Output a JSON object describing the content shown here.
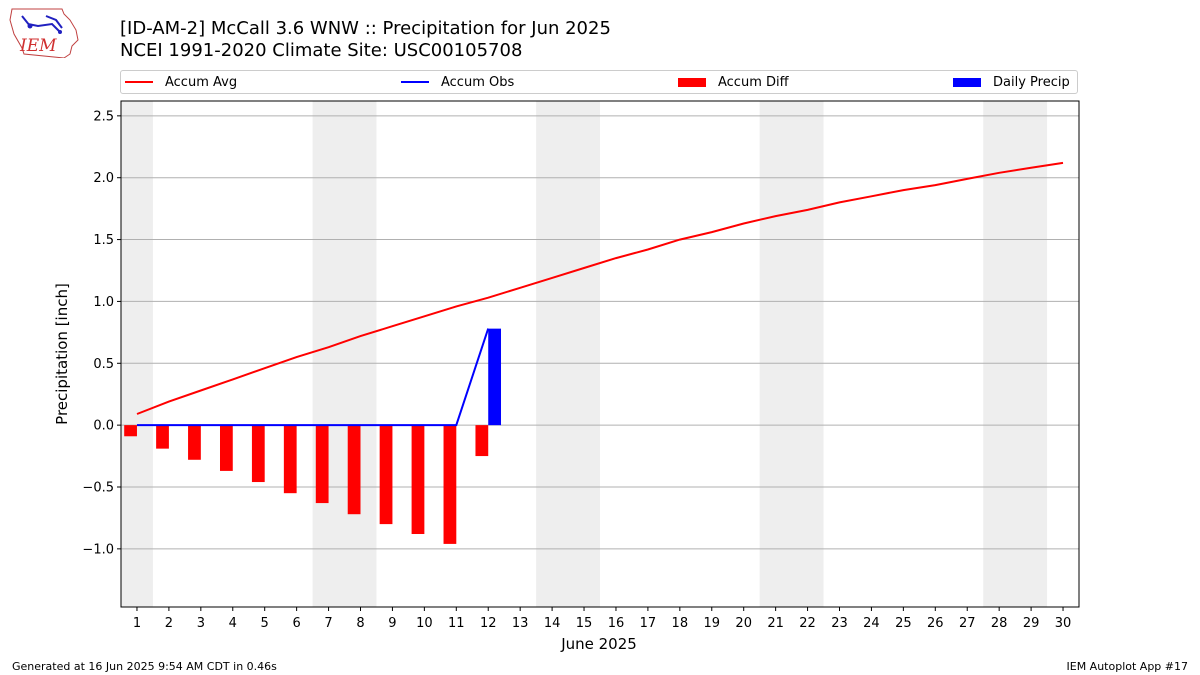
{
  "logo": {
    "text": "IEM"
  },
  "title_line1": "[ID-AM-2] McCall 3.6 WNW :: Precipitation for Jun 2025",
  "title_line2": "NCEI 1991-2020 Climate Site: USC00105708",
  "legend": [
    {
      "label": "Accum Avg",
      "kind": "line",
      "color": "#ff0000"
    },
    {
      "label": "Accum Obs",
      "kind": "line",
      "color": "#0000ff"
    },
    {
      "label": "Accum Diff",
      "kind": "bar",
      "color": "#ff0000"
    },
    {
      "label": "Daily Precip",
      "kind": "bar",
      "color": "#0000ff"
    }
  ],
  "footer": {
    "left": "Generated at 16 Jun 2025 9:54 AM CDT in 0.46s",
    "right": "IEM Autoplot App #17"
  },
  "chart_data": {
    "type": "bar",
    "title": "[ID-AM-2] McCall 3.6 WNW :: Precipitation for Jun 2025",
    "xlabel": "June 2025",
    "ylabel": "Precipitation [inch]",
    "x": [
      1,
      2,
      3,
      4,
      5,
      6,
      7,
      8,
      9,
      10,
      11,
      12,
      13,
      14,
      15,
      16,
      17,
      18,
      19,
      20,
      21,
      22,
      23,
      24,
      25,
      26,
      27,
      28,
      29,
      30
    ],
    "xlim": [
      0.5,
      30.5
    ],
    "ylim": [
      -1.47,
      2.62
    ],
    "yticks": [
      -1.0,
      -0.5,
      0.0,
      0.5,
      1.0,
      1.5,
      2.0,
      2.5
    ],
    "ytick_labels": [
      "−1.0",
      "−0.5",
      "0.0",
      "0.5",
      "1.0",
      "1.5",
      "2.0",
      "2.5"
    ],
    "grid": true,
    "weekend_shading": [
      [
        0.5,
        1.5
      ],
      [
        6.5,
        8.5
      ],
      [
        13.5,
        15.5
      ],
      [
        20.5,
        22.5
      ],
      [
        27.5,
        29.5
      ]
    ],
    "series": [
      {
        "name": "Accum Avg",
        "type": "line",
        "color": "#ff0000",
        "x": [
          1,
          2,
          3,
          4,
          5,
          6,
          7,
          8,
          9,
          10,
          11,
          12,
          13,
          14,
          15,
          16,
          17,
          18,
          19,
          20,
          21,
          22,
          23,
          24,
          25,
          26,
          27,
          28,
          29,
          30
        ],
        "values": [
          0.09,
          0.19,
          0.28,
          0.37,
          0.46,
          0.55,
          0.63,
          0.72,
          0.8,
          0.88,
          0.96,
          1.03,
          1.11,
          1.19,
          1.27,
          1.35,
          1.42,
          1.5,
          1.56,
          1.63,
          1.69,
          1.74,
          1.8,
          1.85,
          1.9,
          1.94,
          1.99,
          2.04,
          2.08,
          2.12
        ]
      },
      {
        "name": "Accum Obs",
        "type": "line",
        "color": "#0000ff",
        "x": [
          1,
          2,
          3,
          4,
          5,
          6,
          7,
          8,
          9,
          10,
          11,
          12
        ],
        "values": [
          0,
          0,
          0,
          0,
          0,
          0,
          0,
          0,
          0,
          0,
          0,
          0.78
        ]
      },
      {
        "name": "Accum Diff",
        "type": "bar",
        "color": "#ff0000",
        "x": [
          1,
          2,
          3,
          4,
          5,
          6,
          7,
          8,
          9,
          10,
          11,
          12
        ],
        "values": [
          -0.09,
          -0.19,
          -0.28,
          -0.37,
          -0.46,
          -0.55,
          -0.63,
          -0.72,
          -0.8,
          -0.88,
          -0.96,
          -0.25
        ]
      },
      {
        "name": "Daily Precip",
        "type": "bar",
        "color": "#0000ff",
        "x": [
          1,
          2,
          3,
          4,
          5,
          6,
          7,
          8,
          9,
          10,
          11,
          12
        ],
        "values": [
          0,
          0,
          0,
          0,
          0,
          0,
          0,
          0,
          0,
          0,
          0,
          0.78
        ]
      }
    ]
  }
}
